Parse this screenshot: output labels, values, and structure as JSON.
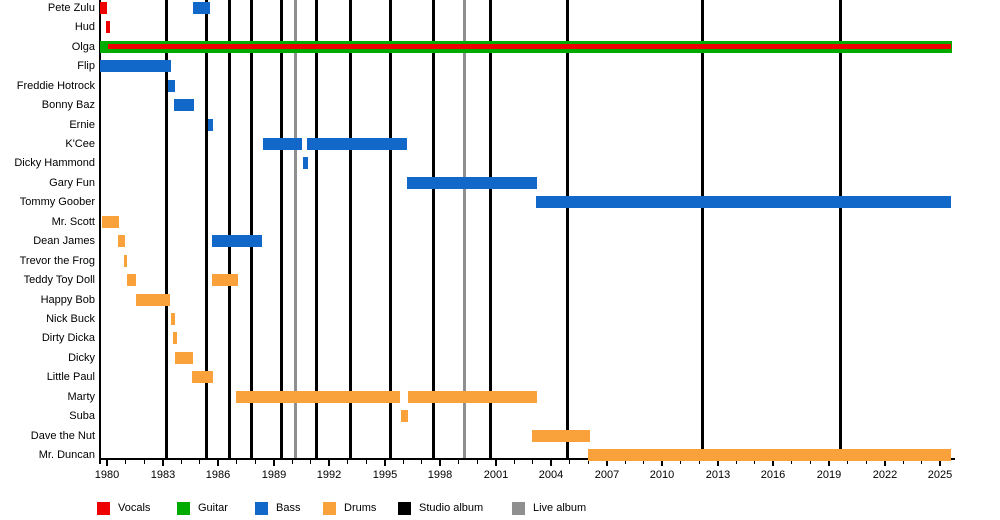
{
  "chart_data": {
    "type": "timeline",
    "description": "Band members timeline (Gantt-style bars by role) with album release markers as vertical lines",
    "x_axis": {
      "start_year": 1979.62,
      "end_year": 2025.8,
      "first_labeled_year": 1980,
      "last_labeled_year": 2025,
      "label_every_years": 3,
      "minor_tick_every_years": 1,
      "tick_labels": [
        "1980",
        "1983",
        "1986",
        "1989",
        "1992",
        "1995",
        "1998",
        "2001",
        "2004",
        "2007",
        "2010",
        "2013",
        "2016",
        "2019",
        "2022",
        "2025"
      ]
    },
    "colors": {
      "vocals": "#EE0000",
      "guitar": "#00AB00",
      "bass": "#1168C9",
      "drums": "#F9A23B",
      "studio_album": "#000000",
      "live_album": "#8F8F8F"
    },
    "legend": [
      {
        "label": "Vocals",
        "color_key": "vocals"
      },
      {
        "label": "Guitar",
        "color_key": "guitar"
      },
      {
        "label": "Bass",
        "color_key": "bass"
      },
      {
        "label": "Drums",
        "color_key": "drums"
      },
      {
        "label": "Studio album",
        "color_key": "studio_album"
      },
      {
        "label": "Live album",
        "color_key": "live_album"
      }
    ],
    "members": [
      {
        "name": "Pete Zulu",
        "bars": [
          {
            "role": "vocals",
            "start": 1979.62,
            "end": 1980.0
          },
          {
            "role": "bass",
            "start": 1984.65,
            "end": 1985.56
          }
        ]
      },
      {
        "name": "Hud",
        "bars": [
          {
            "role": "vocals",
            "start": 1979.95,
            "end": 1980.16
          }
        ]
      },
      {
        "name": "Olga",
        "bars": [
          {
            "role": "guitar",
            "start": 1979.62,
            "end": 2025.65
          },
          {
            "role": "vocals",
            "start": 1980.05,
            "end": 2025.6,
            "stripe": true
          }
        ]
      },
      {
        "name": "Flip",
        "bars": [
          {
            "role": "bass",
            "start": 1979.62,
            "end": 1983.46
          }
        ]
      },
      {
        "name": "Freddie Hotrock",
        "bars": [
          {
            "role": "bass",
            "start": 1983.3,
            "end": 1983.67
          }
        ]
      },
      {
        "name": "Bonny Baz",
        "bars": [
          {
            "role": "bass",
            "start": 1983.62,
            "end": 1984.7
          }
        ]
      },
      {
        "name": "Ernie",
        "bars": [
          {
            "role": "bass",
            "start": 1985.46,
            "end": 1985.73
          }
        ]
      },
      {
        "name": "K'Cee",
        "bars": [
          {
            "role": "bass",
            "start": 1988.43,
            "end": 1990.54
          },
          {
            "role": "bass",
            "start": 1990.8,
            "end": 1996.2
          }
        ]
      },
      {
        "name": "Dicky Hammond",
        "bars": [
          {
            "role": "bass",
            "start": 1990.59,
            "end": 1990.86
          }
        ]
      },
      {
        "name": "Gary Fun",
        "bars": [
          {
            "role": "bass",
            "start": 1996.2,
            "end": 2003.23
          }
        ]
      },
      {
        "name": "Tommy Goober",
        "bars": [
          {
            "role": "bass",
            "start": 2003.18,
            "end": 2025.6
          }
        ]
      },
      {
        "name": "Mr. Scott",
        "bars": [
          {
            "role": "drums",
            "start": 1979.73,
            "end": 1980.65
          }
        ]
      },
      {
        "name": "Dean James",
        "bars": [
          {
            "role": "drums",
            "start": 1980.59,
            "end": 1980.97
          },
          {
            "role": "bass",
            "start": 1985.67,
            "end": 1988.37
          }
        ]
      },
      {
        "name": "Trevor the Frog",
        "bars": [
          {
            "role": "drums",
            "start": 1980.92,
            "end": 1981.08
          }
        ]
      },
      {
        "name": "Teddy Toy Doll",
        "bars": [
          {
            "role": "drums",
            "start": 1981.08,
            "end": 1981.57
          },
          {
            "role": "drums",
            "start": 1985.67,
            "end": 1987.08
          }
        ]
      },
      {
        "name": "Happy Bob",
        "bars": [
          {
            "role": "drums",
            "start": 1981.57,
            "end": 1983.4
          }
        ]
      },
      {
        "name": "Nick Buck",
        "bars": [
          {
            "role": "drums",
            "start": 1983.46,
            "end": 1983.67
          }
        ]
      },
      {
        "name": "Dirty Dicka",
        "bars": [
          {
            "role": "drums",
            "start": 1983.57,
            "end": 1983.78
          }
        ]
      },
      {
        "name": "Dicky",
        "bars": [
          {
            "role": "drums",
            "start": 1983.67,
            "end": 1984.65
          }
        ]
      },
      {
        "name": "Little Paul",
        "bars": [
          {
            "role": "drums",
            "start": 1984.59,
            "end": 1985.73
          }
        ]
      },
      {
        "name": "Marty",
        "bars": [
          {
            "role": "drums",
            "start": 1986.97,
            "end": 1995.83
          },
          {
            "role": "drums",
            "start": 1996.26,
            "end": 2003.23
          }
        ]
      },
      {
        "name": "Suba",
        "bars": [
          {
            "role": "drums",
            "start": 1995.88,
            "end": 1996.26
          }
        ]
      },
      {
        "name": "Dave the Nut",
        "bars": [
          {
            "role": "drums",
            "start": 2002.96,
            "end": 2006.1
          }
        ]
      },
      {
        "name": "Mr. Duncan",
        "bars": [
          {
            "role": "drums",
            "start": 2005.99,
            "end": 2025.6
          }
        ]
      }
    ],
    "albums": {
      "studio_years": [
        1983.24,
        1985.35,
        1986.59,
        1987.78,
        1989.4,
        1991.34,
        1993.13,
        1995.34,
        1997.61,
        2000.69,
        2004.85,
        2012.14,
        2019.6
      ],
      "live_years": [
        1990.16,
        1999.29
      ]
    }
  }
}
